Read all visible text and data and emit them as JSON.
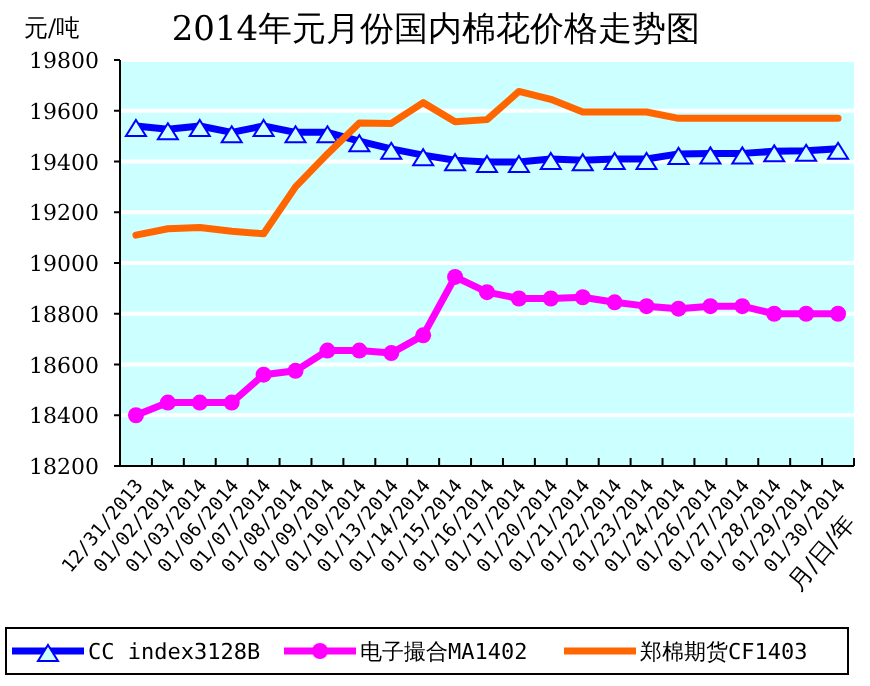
{
  "chart_data": {
    "type": "line",
    "title": "2014年元月份国内棉花价格走势图",
    "ylabel": "元/吨",
    "xlabel": "月/日/年",
    "categories": [
      "12/31/2013",
      "01/02/2014",
      "01/03/2014",
      "01/06/2014",
      "01/07/2014",
      "01/08/2014",
      "01/09/2014",
      "01/10/2014",
      "01/13/2014",
      "01/14/2014",
      "01/15/2014",
      "01/16/2014",
      "01/17/2014",
      "01/20/2014",
      "01/21/2014",
      "01/22/2014",
      "01/23/2014",
      "01/24/2014",
      "01/26/2014",
      "01/27/2014",
      "01/28/2014",
      "01/29/2014",
      "01/30/2014"
    ],
    "series": [
      {
        "name": "CC index3128B",
        "color": "#0000ff",
        "marker": "triangle",
        "values": [
          19540,
          19527,
          19540,
          19515,
          19540,
          19515,
          19515,
          19480,
          19450,
          19425,
          19405,
          19398,
          19398,
          19410,
          19405,
          19410,
          19410,
          19430,
          19432,
          19432,
          19440,
          19442,
          19450
        ]
      },
      {
        "name": "电子撮合MA1402",
        "color": "#ff00ff",
        "marker": "circle",
        "values": [
          18400,
          18450,
          18450,
          18450,
          18560,
          18575,
          18655,
          18655,
          18645,
          18715,
          18945,
          18885,
          18860,
          18860,
          18865,
          18845,
          18830,
          18820,
          18830,
          18830,
          18800,
          18800,
          18800
        ]
      },
      {
        "name": "郑棉期货CF1403",
        "color": "#ff6600",
        "marker": "none",
        "values": [
          19110,
          19135,
          19140,
          19125,
          19115,
          19300,
          19430,
          19552,
          19550,
          19632,
          19557,
          19565,
          19676,
          19645,
          19595,
          19595,
          19595,
          19570,
          19570,
          19570,
          19570,
          19570,
          19570
        ]
      }
    ],
    "ylim": [
      18200,
      19800
    ],
    "yticks": [
      18200,
      18400,
      18600,
      18800,
      19000,
      19200,
      19400,
      19600,
      19800
    ],
    "grid": "y",
    "legend": "bottom"
  }
}
